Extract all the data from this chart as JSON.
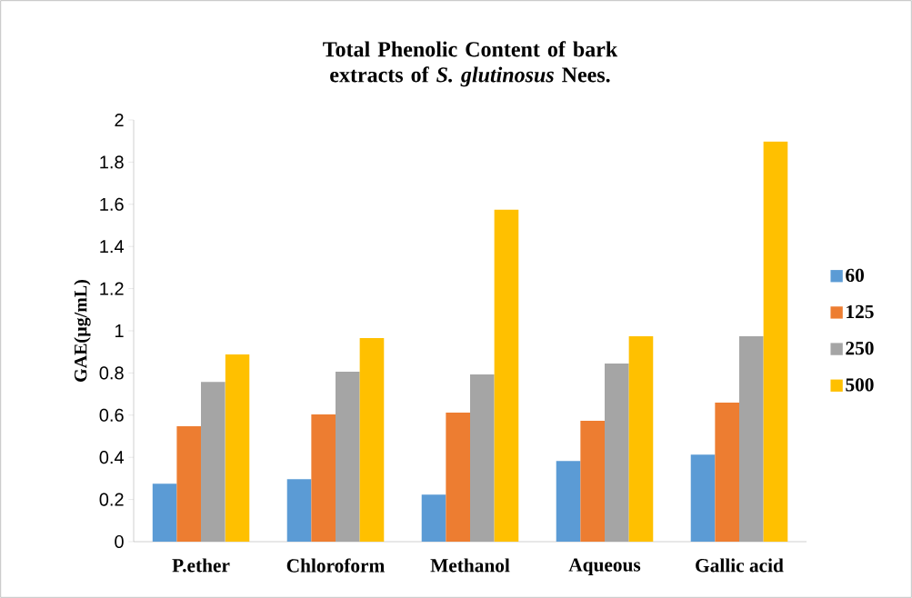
{
  "chart_data": {
    "type": "bar",
    "title": "Total Phenolic Content of bark extracts of *S. glutinosus* Nees.",
    "ylabel": "GAE(µg/mL)",
    "categories": [
      "P.ether",
      "Chloroform",
      "Methanol",
      "Aqueous",
      "Gallic acid"
    ],
    "series": [
      {
        "name": "60",
        "color": "#5b9bd5",
        "values": [
          0.275,
          0.296,
          0.223,
          0.383,
          0.413
        ]
      },
      {
        "name": "125",
        "color": "#ed7d31",
        "values": [
          0.547,
          0.603,
          0.612,
          0.573,
          0.659
        ]
      },
      {
        "name": "250",
        "color": "#a5a5a5",
        "values": [
          0.758,
          0.806,
          0.793,
          0.845,
          0.974
        ]
      },
      {
        "name": "500",
        "color": "#ffc000",
        "values": [
          0.888,
          0.965,
          1.574,
          0.974,
          1.898
        ]
      }
    ],
    "ylim": [
      0,
      2
    ],
    "yticks": [
      0,
      0.2,
      0.4,
      0.6,
      0.8,
      1,
      1.2,
      1.4,
      1.6,
      1.8,
      2
    ],
    "legend": "right",
    "grid": false
  }
}
